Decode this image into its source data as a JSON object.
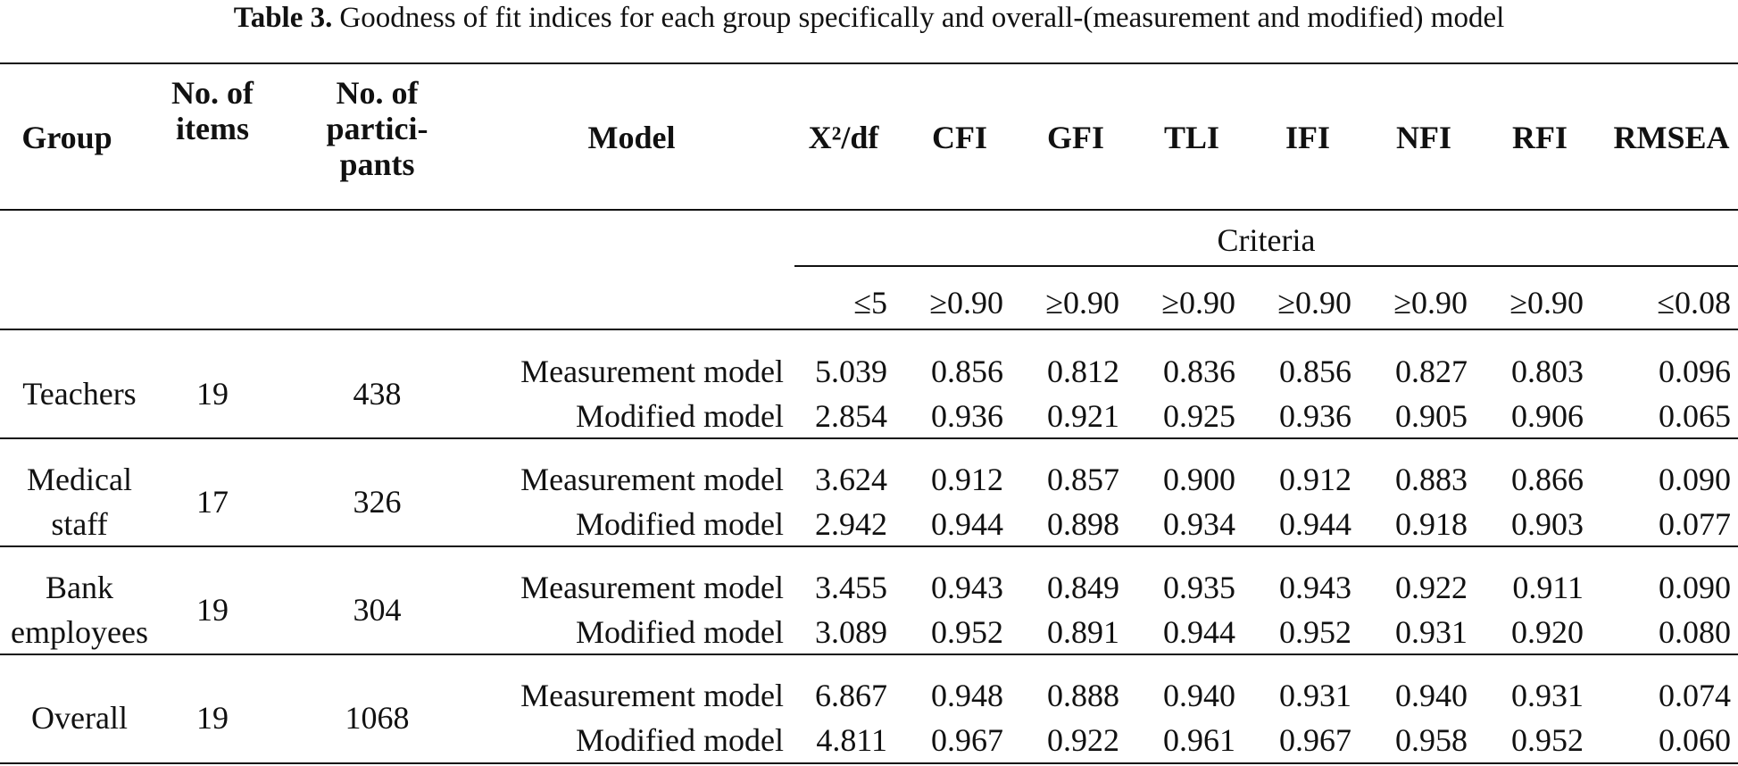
{
  "caption": {
    "label": "Table 3.",
    "text": "Goodness of fit indices for each group specifically and overall-(measurement and modified) model"
  },
  "headers": {
    "group": "Group",
    "items_line1": "No. of",
    "items_line2": "items",
    "participants_line1": "No. of",
    "participants_line2": "partici-",
    "participants_line3": "pants",
    "model": "Model",
    "metrics": [
      "X²/df",
      "CFI",
      "GFI",
      "TLI",
      "IFI",
      "NFI",
      "RFI",
      "RMSEA"
    ]
  },
  "criteria": {
    "label": "Criteria",
    "values": [
      "≤5",
      "≥0.90",
      "≥0.90",
      "≥0.90",
      "≥0.90",
      "≥0.90",
      "≥0.90",
      "≤0.08"
    ]
  },
  "groups": [
    {
      "name_line1": "Teachers",
      "name_line2": "",
      "items": "19",
      "participants": "438",
      "rows": [
        {
          "model": "Measurement model",
          "values": [
            "5.039",
            "0.856",
            "0.812",
            "0.836",
            "0.856",
            "0.827",
            "0.803",
            "0.096"
          ]
        },
        {
          "model": "Modified model",
          "values": [
            "2.854",
            "0.936",
            "0.921",
            "0.925",
            "0.936",
            "0.905",
            "0.906",
            "0.065"
          ]
        }
      ]
    },
    {
      "name_line1": "Medical",
      "name_line2": "staff",
      "items": "17",
      "participants": "326",
      "rows": [
        {
          "model": "Measurement model",
          "values": [
            "3.624",
            "0.912",
            "0.857",
            "0.900",
            "0.912",
            "0.883",
            "0.866",
            "0.090"
          ]
        },
        {
          "model": "Modified model",
          "values": [
            "2.942",
            "0.944",
            "0.898",
            "0.934",
            "0.944",
            "0.918",
            "0.903",
            "0.077"
          ]
        }
      ]
    },
    {
      "name_line1": "Bank",
      "name_line2": "employees",
      "items": "19",
      "participants": "304",
      "rows": [
        {
          "model": "Measurement model",
          "values": [
            "3.455",
            "0.943",
            "0.849",
            "0.935",
            "0.943",
            "0.922",
            "0.911",
            "0.090"
          ]
        },
        {
          "model": "Modified model",
          "values": [
            "3.089",
            "0.952",
            "0.891",
            "0.944",
            "0.952",
            "0.931",
            "0.920",
            "0.080"
          ]
        }
      ]
    },
    {
      "name_line1": "Overall",
      "name_line2": "",
      "items": "19",
      "participants": "1068",
      "rows": [
        {
          "model": "Measurement model",
          "values": [
            "6.867",
            "0.948",
            "0.888",
            "0.940",
            "0.931",
            "0.940",
            "0.931",
            "0.074"
          ]
        },
        {
          "model": "Modified model",
          "values": [
            "4.811",
            "0.967",
            "0.922",
            "0.961",
            "0.967",
            "0.958",
            "0.952",
            "0.060"
          ]
        }
      ]
    }
  ]
}
